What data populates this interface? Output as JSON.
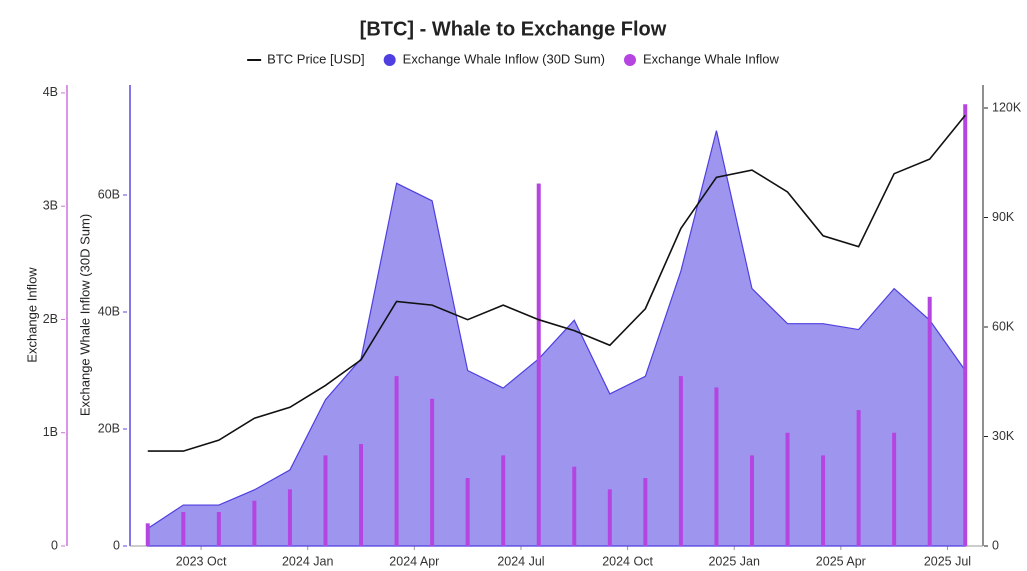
{
  "chart_data": {
    "type": "combo",
    "title": "[BTC] - Whale to Exchange Flow",
    "y_label": "Exchange Whale Inflow (30D Sum)",
    "y3_label": "Exchange Inflow",
    "x": [
      "2023-08",
      "2023-09",
      "2023-10",
      "2023-11",
      "2023-12",
      "2024-01",
      "2024-02",
      "2024-03",
      "2024-04",
      "2024-05",
      "2024-06",
      "2024-07",
      "2024-08",
      "2024-09",
      "2024-10",
      "2024-11",
      "2024-12",
      "2025-01",
      "2025-02",
      "2025-03",
      "2025-04",
      "2025-05",
      "2025-06",
      "2025-07"
    ],
    "xlim": [
      "2023-08",
      "2025-08"
    ],
    "xticks": [
      {
        "value": "2023-10",
        "label": "2023 Oct"
      },
      {
        "value": "2024-01",
        "label": "2024 Jan"
      },
      {
        "value": "2024-04",
        "label": "2024 Apr"
      },
      {
        "value": "2024-07",
        "label": "2024 Jul"
      },
      {
        "value": "2024-10",
        "label": "2024 Oct"
      },
      {
        "value": "2025-01",
        "label": "2025 Jan"
      },
      {
        "value": "2025-04",
        "label": "2025 Apr"
      },
      {
        "value": "2025-07",
        "label": "2025 Jul"
      }
    ],
    "ylim": [
      0,
      78800000000
    ],
    "yticks": [
      0,
      {
        "value": 20000000000,
        "label": "20B"
      },
      {
        "value": 40000000000,
        "label": "40B"
      },
      {
        "value": 60000000000,
        "label": "60B"
      }
    ],
    "y2lim": [
      0,
      126300
    ],
    "y2ticks": [
      0,
      {
        "value": 30000,
        "label": "30K"
      },
      {
        "value": 60000,
        "label": "60K"
      },
      {
        "value": 90000,
        "label": "90K"
      },
      {
        "value": 120000,
        "label": "120K"
      }
    ],
    "y3lim": [
      0,
      4070000000
    ],
    "y3ticks": [
      0,
      {
        "value": 1000000000,
        "label": "1B"
      },
      {
        "value": 2000000000,
        "label": "2B"
      },
      {
        "value": 3000000000,
        "label": "3B"
      },
      {
        "value": 4000000000,
        "label": "4B"
      }
    ],
    "series": [
      {
        "name": "BTC Price [USD]",
        "type": "line",
        "axis": "y2",
        "color": "#111111",
        "values": [
          26000,
          26000,
          29000,
          35000,
          38000,
          44000,
          51000,
          67000,
          66000,
          62000,
          66000,
          62000,
          59000,
          55000,
          65000,
          87000,
          101000,
          103000,
          97000,
          85000,
          82000,
          102000,
          106000,
          118000
        ]
      },
      {
        "name": "Exchange Whale Inflow (30D Sum)",
        "type": "area",
        "axis": "y",
        "color": "#4f3fe0",
        "values": [
          3000000000,
          7000000000,
          7000000000,
          9600000000,
          13000000000,
          25000000000,
          32000000000,
          62000000000,
          59000000000,
          30000000000,
          27000000000,
          32000000000,
          38600000000,
          26000000000,
          29000000000,
          47000000000,
          71000000000,
          44000000000,
          38000000000,
          38000000000,
          37000000000,
          44000000000,
          38600000000,
          30000000000
        ]
      },
      {
        "name": "Exchange Whale Inflow",
        "type": "bar",
        "axis": "y3",
        "color": "#b545e0",
        "values": [
          200000000,
          300000000,
          300000000,
          400000000,
          500000000,
          800000000,
          900000000,
          1500000000,
          1300000000,
          600000000,
          800000000,
          3200000000,
          700000000,
          500000000,
          600000000,
          1500000000,
          1400000000,
          800000000,
          1000000000,
          800000000,
          1200000000,
          1000000000,
          2200000000,
          3900000000
        ]
      }
    ]
  }
}
